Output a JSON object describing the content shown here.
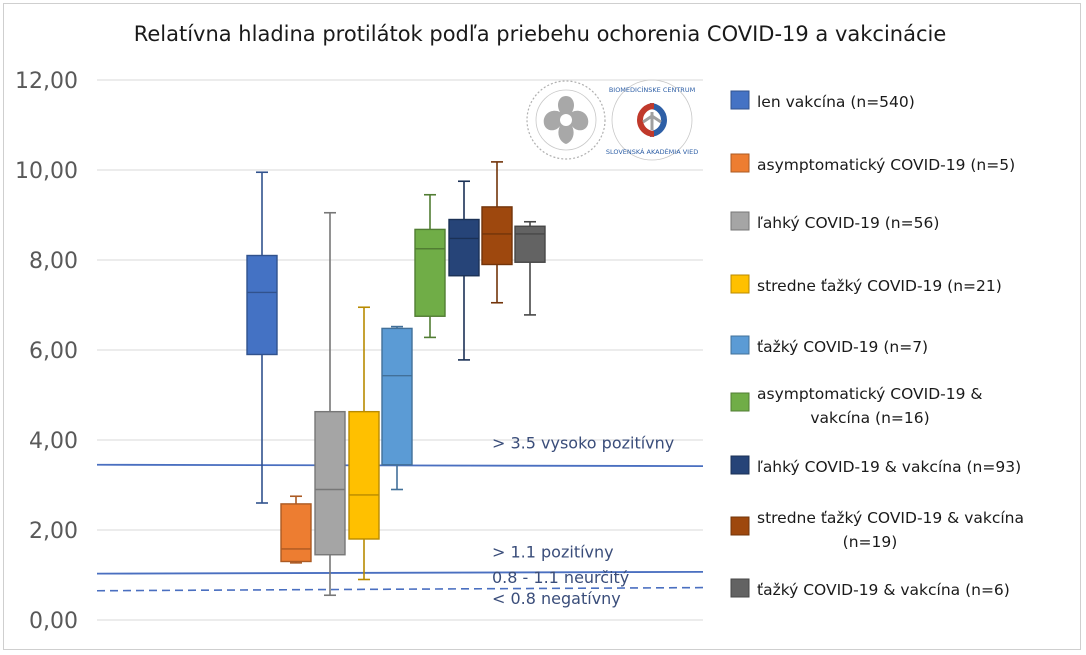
{
  "chart_data": {
    "type": "box",
    "title": "Relatívna hladina protilátok podľa priebehu ochorenia COVID-19 a vakcinácie",
    "xlabel": "",
    "ylabel": "",
    "ylim": [
      0,
      12
    ],
    "yticks": [
      "0,00",
      "2,00",
      "4,00",
      "6,00",
      "8,00",
      "10,00",
      "12,00"
    ],
    "grid": true,
    "legend_position": "right",
    "series": [
      {
        "name": "len vakcína (n=540)",
        "color": "#4472c4",
        "whisker_low": 2.6,
        "q1": 5.9,
        "median": 7.28,
        "q3": 8.1,
        "whisker_high": 9.95
      },
      {
        "name": "asymptomatický COVID-19 (n=5)",
        "color": "#ed7d31",
        "whisker_low": 1.27,
        "q1": 1.3,
        "median": 1.58,
        "q3": 2.58,
        "whisker_high": 2.75
      },
      {
        "name": "ľahký COVID-19 (n=56)",
        "color": "#a5a5a5",
        "whisker_low": 0.55,
        "q1": 1.45,
        "median": 2.9,
        "q3": 4.63,
        "whisker_high": 9.05
      },
      {
        "name": "stredne ťažký COVID-19 (n=21)",
        "color": "#ffc000",
        "whisker_low": 0.9,
        "q1": 1.8,
        "median": 2.78,
        "q3": 4.63,
        "whisker_high": 6.95
      },
      {
        "name": "ťažký COVID-19 (n=7)",
        "color": "#5b9bd5",
        "whisker_low": 2.9,
        "q1": 3.45,
        "median": 5.43,
        "q3": 6.48,
        "whisker_high": 6.52
      },
      {
        "name_lines": [
          "asymptomatický COVID-19 &",
          "vakcína (n=16)"
        ],
        "color": "#70ad47",
        "whisker_low": 6.28,
        "q1": 6.75,
        "median": 8.25,
        "q3": 8.68,
        "whisker_high": 9.45
      },
      {
        "name": "ľahký COVID-19 & vakcína (n=93)",
        "color": "#264478",
        "whisker_low": 5.78,
        "q1": 7.65,
        "median": 8.48,
        "q3": 8.9,
        "whisker_high": 9.75
      },
      {
        "name_lines": [
          "stredne ťažký COVID-19 & vakcína",
          "(n=19)"
        ],
        "color": "#9e480e",
        "whisker_low": 7.05,
        "q1": 7.9,
        "median": 8.58,
        "q3": 9.18,
        "whisker_high": 10.18
      },
      {
        "name": "ťažký COVID-19 & vakcína (n=6)",
        "color": "#636363",
        "whisker_low": 6.78,
        "q1": 7.95,
        "median": 8.58,
        "q3": 8.75,
        "whisker_high": 8.85
      }
    ],
    "reference_lines": [
      {
        "value": 3.5,
        "label": "> 3.5 vysoko pozitívny",
        "style": "solid"
      },
      {
        "value": 1.1,
        "label": "> 1.1 pozitívny",
        "style": "solid"
      },
      {
        "value": 0.8,
        "label": "0.8 - 1.1 neurčitý",
        "style": "dashed"
      },
      {
        "label": "< 0.8 negatívny"
      }
    ]
  },
  "logos": [
    {
      "name": "slovak-academy-emblem",
      "color": "#9a9a9a"
    },
    {
      "name": "biomedical-center-logo",
      "text_top": "BIOMEDICÍNSKE CENTRUM",
      "text_bottom": "SLOVENSKÁ AKADÉMIA VIED",
      "colors": [
        "#c0392b",
        "#2e5fa6",
        "#9a9a9a"
      ]
    }
  ]
}
